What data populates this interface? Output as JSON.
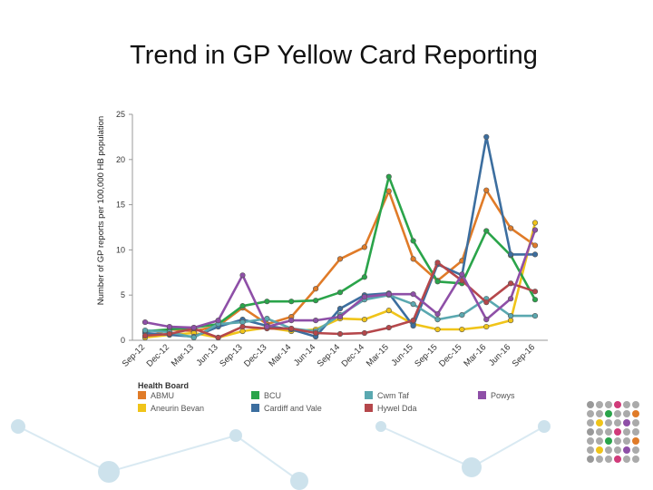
{
  "chart_data": {
    "type": "line",
    "title": "Trend in GP Yellow Card Reporting",
    "y_label": "Number of GP reports per 100,000 HB population",
    "legend_title": "Health Board",
    "categories": [
      "Sep-12",
      "Dec-12",
      "Mar-13",
      "Jun-13",
      "Sep-13",
      "Dec-13",
      "Mar-14",
      "Jun-14",
      "Sep-14",
      "Dec-14",
      "Mar-15",
      "Jun-15",
      "Sep-15",
      "Dec-15",
      "Mar-16",
      "Jun-16",
      "Sep-16"
    ],
    "ylim": [
      0,
      25
    ],
    "yticks": [
      0,
      5,
      10,
      15,
      20,
      25
    ],
    "series": [
      {
        "name": "ABMU",
        "color": "#e07b28",
        "values": [
          0.3,
          1.2,
          1.0,
          1.6,
          3.6,
          1.8,
          2.6,
          5.7,
          9.0,
          10.3,
          16.5,
          9.0,
          6.6,
          8.8,
          16.6,
          12.4,
          10.5
        ]
      },
      {
        "name": "Aneurin Bevan",
        "color": "#f0c419",
        "values": [
          0.3,
          0.6,
          0.8,
          0.3,
          1.0,
          1.4,
          1.0,
          1.2,
          2.4,
          2.3,
          3.3,
          1.8,
          1.2,
          1.2,
          1.5,
          2.2,
          13.0
        ]
      },
      {
        "name": "BCU",
        "color": "#2aa44a",
        "values": [
          1.0,
          1.2,
          1.4,
          1.8,
          3.8,
          4.3,
          4.3,
          4.4,
          5.3,
          7.0,
          18.1,
          11.0,
          6.5,
          6.3,
          12.1,
          9.4,
          4.5
        ]
      },
      {
        "name": "Cardiff and Vale",
        "color": "#3c6e9f",
        "values": [
          0.8,
          0.6,
          0.4,
          1.5,
          2.3,
          1.6,
          1.2,
          0.4,
          3.5,
          5.0,
          5.2,
          1.6,
          8.4,
          7.2,
          22.5,
          9.5,
          9.5
        ]
      },
      {
        "name": "Cwm Taf",
        "color": "#5aa8b0",
        "values": [
          1.1,
          0.9,
          0.3,
          1.8,
          2.0,
          2.4,
          1.3,
          1.0,
          2.8,
          4.5,
          5.0,
          4.0,
          2.3,
          2.8,
          4.6,
          2.7,
          2.7
        ]
      },
      {
        "name": "Hywel Dda",
        "color": "#b5474b",
        "values": [
          0.5,
          0.7,
          1.3,
          0.3,
          1.5,
          1.3,
          1.3,
          0.8,
          0.7,
          0.8,
          1.4,
          2.2,
          8.6,
          6.6,
          4.2,
          6.3,
          5.4
        ]
      },
      {
        "name": "Powys",
        "color": "#8e4fa7",
        "values": [
          2.0,
          1.5,
          1.4,
          2.2,
          7.2,
          1.5,
          2.2,
          2.2,
          2.6,
          4.8,
          5.1,
          5.1,
          2.9,
          7.3,
          2.3,
          4.6,
          12.2
        ]
      }
    ]
  }
}
